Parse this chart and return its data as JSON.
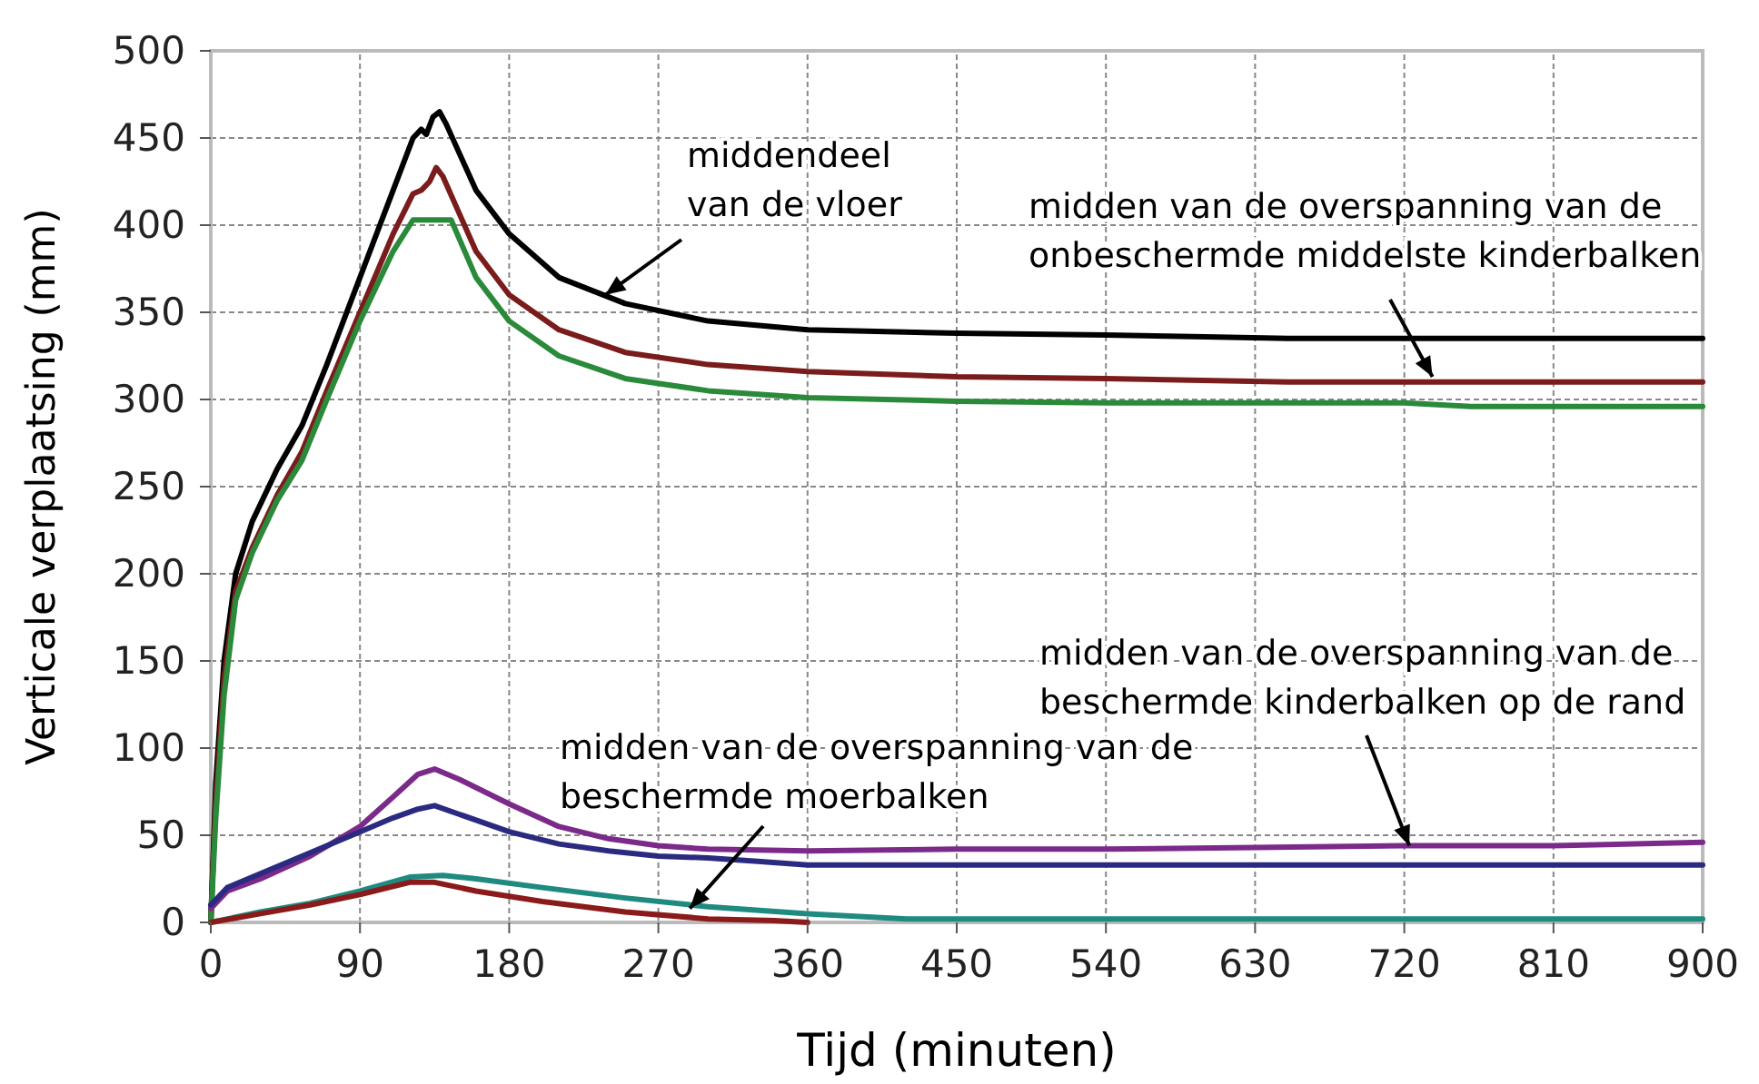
{
  "chart_data": {
    "type": "line",
    "xlabel": "Tijd (minuten)",
    "ylabel": "Verticale verplaatsing (mm)",
    "xlim": [
      0,
      900
    ],
    "xticks": [
      0,
      90,
      180,
      270,
      360,
      450,
      540,
      630,
      720,
      810,
      900
    ],
    "ylim": [
      0,
      500
    ],
    "yticks": [
      0,
      50,
      100,
      150,
      200,
      250,
      300,
      350,
      400,
      450,
      500
    ],
    "grid": true,
    "marker": "none",
    "line_style": "solid",
    "annotations": [
      {
        "text": "middendeel\nvan de vloer",
        "x": 238,
        "y": 360
      },
      {
        "text": "midden van de overspanning van de\nonbeschermde middelste kinderbalken",
        "x": 737,
        "y": 313
      },
      {
        "text": "midden van de overspanning van de\nbeschermde kinderbalken op de rand",
        "x": 723,
        "y": 44
      },
      {
        "text": "midden van de overspanning van de\nbeschermde moerbalken",
        "x": 289,
        "y": 8
      }
    ],
    "series": [
      {
        "color": "#000000",
        "x": [
          0,
          3,
          8,
          15,
          25,
          40,
          55,
          70,
          90,
          110,
          122,
          127,
          130,
          134,
          138,
          142,
          160,
          180,
          210,
          250,
          300,
          360,
          450,
          540,
          600,
          650,
          900
        ],
        "values": [
          0,
          80,
          150,
          200,
          230,
          260,
          285,
          320,
          370,
          420,
          450,
          455,
          452,
          462,
          465,
          458,
          420,
          395,
          370,
          355,
          345,
          340,
          338,
          337,
          336,
          335,
          335
        ]
      },
      {
        "color": "#7b1c1c",
        "x": [
          0,
          3,
          8,
          15,
          25,
          40,
          55,
          70,
          90,
          110,
          122,
          127,
          132,
          136,
          140,
          160,
          180,
          210,
          250,
          300,
          360,
          450,
          540,
          650,
          900
        ],
        "values": [
          0,
          70,
          140,
          190,
          215,
          245,
          270,
          305,
          350,
          395,
          418,
          420,
          425,
          433,
          428,
          385,
          360,
          340,
          327,
          320,
          316,
          313,
          312,
          310,
          310
        ]
      },
      {
        "color": "#2a8a3a",
        "x": [
          0,
          3,
          8,
          15,
          25,
          40,
          55,
          70,
          90,
          110,
          122,
          145,
          160,
          180,
          210,
          250,
          300,
          360,
          450,
          540,
          720,
          760,
          900
        ],
        "values": [
          0,
          60,
          130,
          185,
          212,
          242,
          265,
          300,
          345,
          385,
          403,
          403,
          370,
          345,
          325,
          312,
          305,
          301,
          299,
          298,
          298,
          296,
          296
        ]
      },
      {
        "color": "#7b2a8a",
        "x": [
          0,
          10,
          30,
          60,
          90,
          110,
          125,
          135,
          150,
          180,
          210,
          240,
          270,
          300,
          360,
          450,
          540,
          630,
          720,
          810,
          900
        ],
        "values": [
          8,
          18,
          25,
          38,
          55,
          72,
          85,
          88,
          82,
          68,
          55,
          48,
          44,
          42,
          41,
          42,
          42,
          43,
          44,
          44,
          46
        ]
      },
      {
        "color": "#2a2a80",
        "x": [
          0,
          10,
          30,
          60,
          90,
          110,
          125,
          135,
          150,
          180,
          210,
          240,
          270,
          300,
          330,
          360,
          900
        ],
        "values": [
          10,
          20,
          28,
          40,
          52,
          60,
          65,
          67,
          62,
          52,
          45,
          41,
          38,
          37,
          35,
          33,
          33
        ]
      },
      {
        "color": "#1f8a80",
        "x": [
          0,
          30,
          60,
          90,
          120,
          140,
          160,
          200,
          250,
          300,
          360,
          420,
          900
        ],
        "values": [
          0,
          6,
          11,
          18,
          26,
          27,
          25,
          20,
          14,
          9,
          5,
          2,
          2
        ]
      },
      {
        "color": "#8b1a1a",
        "x": [
          0,
          30,
          60,
          90,
          120,
          135,
          160,
          200,
          250,
          300,
          340,
          360
        ],
        "values": [
          0,
          5,
          10,
          16,
          23,
          23,
          18,
          12,
          6,
          2,
          1,
          0
        ]
      }
    ]
  }
}
